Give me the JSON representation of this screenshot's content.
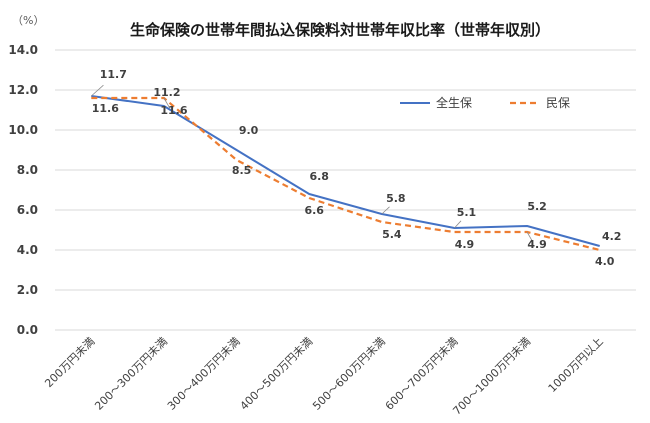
{
  "chart_data": {
    "type": "line",
    "title": "生命保険の世帯年間払込保険料対世帯年収比率（世帯年収別）",
    "unit_label": "（%）",
    "categories": [
      "200万円未満",
      "200～300万円未満",
      "300～400万円未満",
      "400～500万円未満",
      "500～600万円未満",
      "600～700万円未満",
      "700～1000万円未満",
      "1000万円以上"
    ],
    "y_tick_labels": [
      "0.0",
      "2.0",
      "4.0",
      "6.0",
      "8.0",
      "10.0",
      "12.0",
      "14.0"
    ],
    "ylim": [
      0,
      14
    ],
    "grid": true,
    "legend_position": "top-right",
    "series": [
      {
        "name": "全生保",
        "values": [
          11.7,
          11.2,
          9.0,
          6.8,
          5.8,
          5.1,
          5.2,
          4.2
        ],
        "value_labels": [
          "11.7",
          "11.2",
          "9.0",
          "6.8",
          "5.8",
          "5.1",
          "5.2",
          "4.2"
        ],
        "color": "#4472c4",
        "style": "solid"
      },
      {
        "name": "民保",
        "values": [
          11.6,
          11.6,
          8.5,
          6.6,
          5.4,
          4.9,
          4.9,
          4.0
        ],
        "value_labels": [
          "11.6",
          "11.6",
          "8.5",
          "6.6",
          "5.4",
          "4.9",
          "4.9",
          "4.0"
        ],
        "color": "#ed7d31",
        "style": "dashed"
      }
    ]
  }
}
